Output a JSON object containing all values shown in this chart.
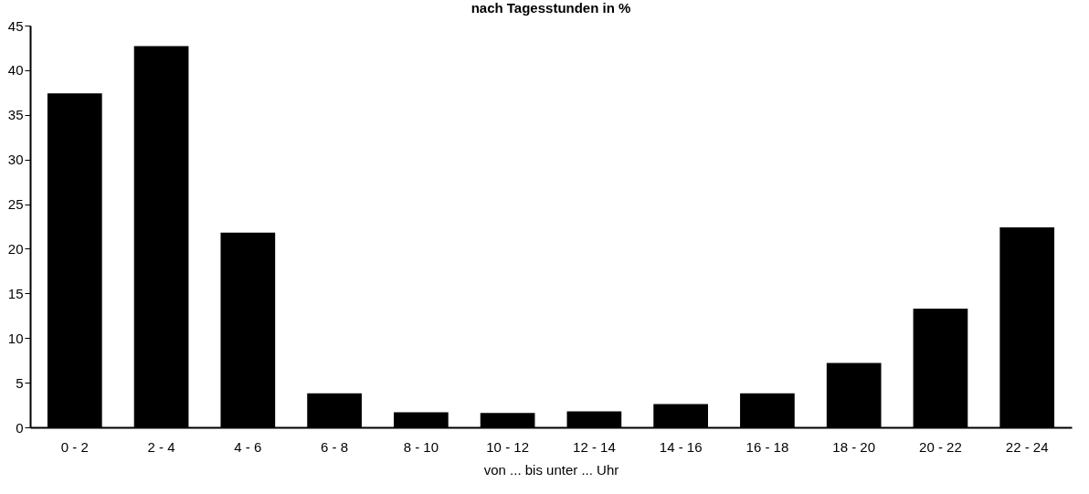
{
  "chart_data": {
    "type": "bar",
    "title": "nach Tagesstunden in %",
    "xlabel": "von ... bis unter ... Uhr",
    "categories": [
      "0 - 2",
      "2 - 4",
      "4 - 6",
      "6 - 8",
      "8 - 10",
      "10 - 12",
      "12 - 14",
      "14 - 16",
      "16 - 18",
      "18 - 20",
      "20 - 22",
      "22 - 24"
    ],
    "values": [
      37.4,
      42.7,
      21.8,
      3.8,
      1.7,
      1.6,
      1.8,
      2.6,
      3.8,
      7.2,
      13.3,
      22.4
    ],
    "color": "#000000",
    "ylim": [
      0,
      45
    ],
    "yticks": [
      0,
      5,
      10,
      15,
      20,
      25,
      30,
      35,
      40,
      45
    ],
    "grid": false
  }
}
